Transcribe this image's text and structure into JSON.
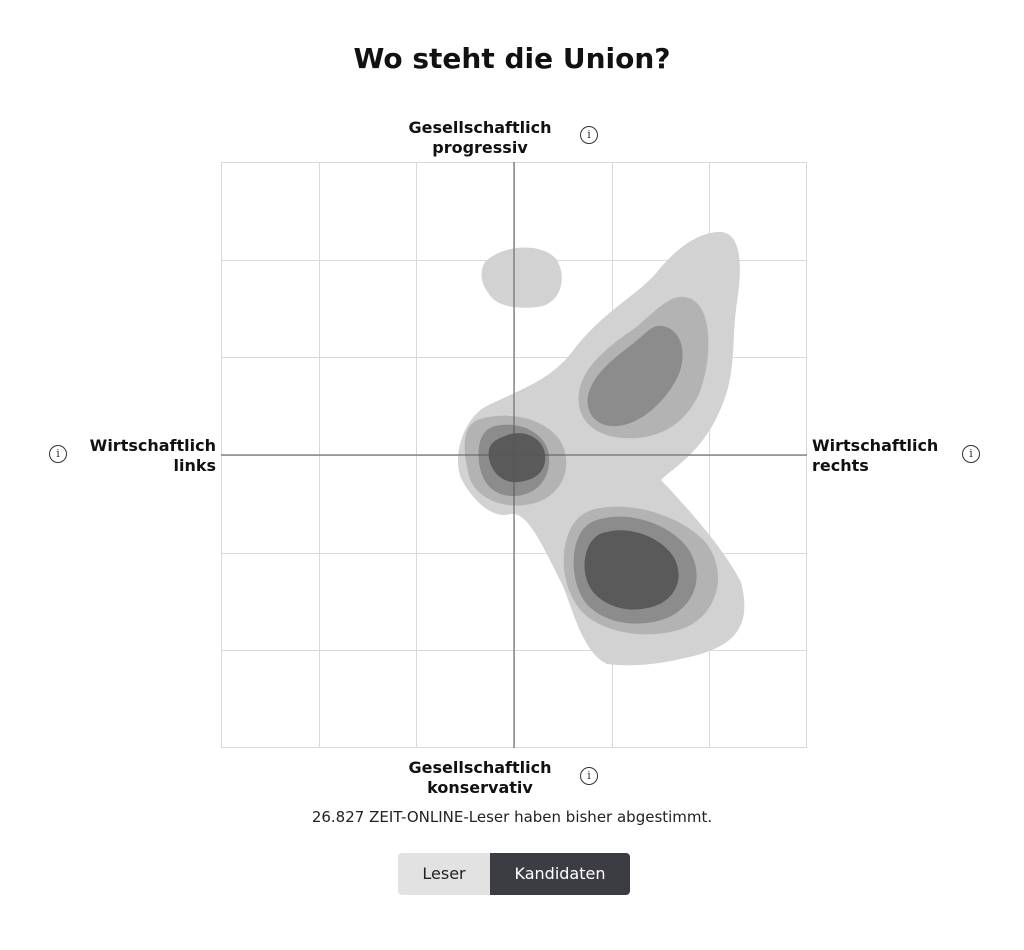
{
  "title": "Wo steht die Union?",
  "axes": {
    "top": [
      "Gesellschaftlich",
      "progressiv"
    ],
    "bottom": [
      "Gesellschaftlich",
      "konservativ"
    ],
    "left": [
      "Wirtschaftlich",
      "links"
    ],
    "right": [
      "Wirtschaftlich",
      "rechts"
    ]
  },
  "info_icon": "info-icon",
  "votes_text": "26.827 ZEIT-ONLINE-Leser haben bisher abgestimmt.",
  "toggle": {
    "options": [
      "Leser",
      "Kandidaten"
    ],
    "selected": "Kandidaten"
  },
  "colors": {
    "grid": "#d9d9d9",
    "axis": "#555555",
    "level_1": "#d2d2d2",
    "level_2": "#b3b3b3",
    "level_3": "#8c8c8c",
    "level_4": "#5a5a5a",
    "toggle_active": "#3c3c43",
    "toggle_inactive": "#e2e2e2"
  },
  "chart_data": {
    "type": "heatmap",
    "title": "Wo steht die Union?",
    "x_axis": {
      "low": "Wirtschaftlich links",
      "high": "Wirtschaftlich rechts",
      "range": [
        -3,
        3
      ]
    },
    "y_axis": {
      "low": "Gesellschaftlich konservativ",
      "high": "Gesellschaftlich progressiv",
      "range": [
        -3,
        3
      ]
    },
    "grid": true,
    "grid_divisions": 6,
    "density_levels": 4,
    "clusters": [
      {
        "name": "upper-left-small",
        "center": [
          0.1,
          1.8
        ],
        "levels": 1
      },
      {
        "name": "upper-right-ridge",
        "center": [
          1.4,
          0.9
        ],
        "levels": 3
      },
      {
        "name": "center",
        "center": [
          0.05,
          0.0
        ],
        "levels": 4
      },
      {
        "name": "lower-right",
        "center": [
          1.15,
          -1.1
        ],
        "levels": 4
      }
    ]
  }
}
